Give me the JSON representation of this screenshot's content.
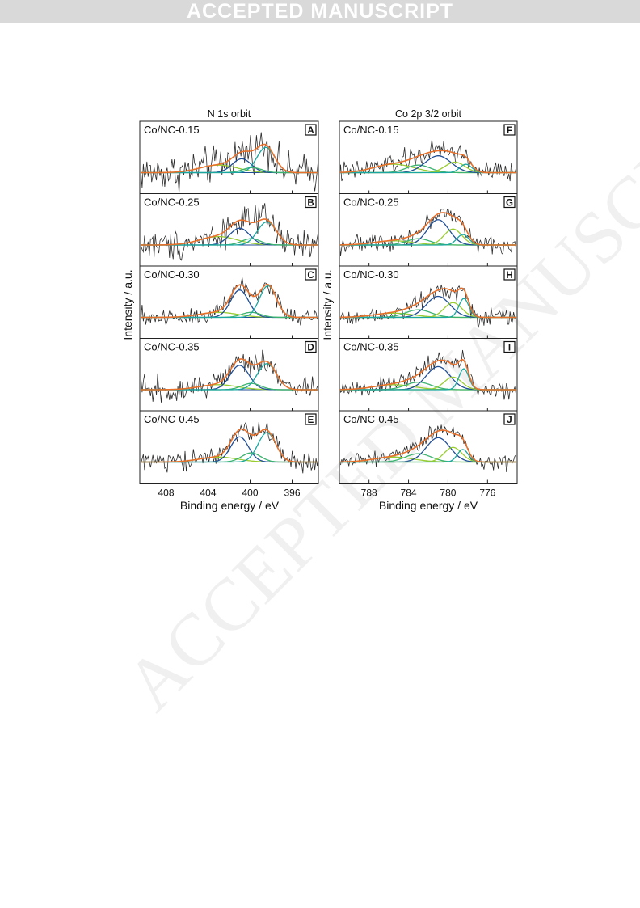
{
  "banner": {
    "text": "ACCEPTED MANUSCRIPT"
  },
  "watermark": {
    "text": "ACCEPTED MANUSCRIPT"
  },
  "colors": {
    "raw": "#2b2b2b",
    "fit": "#e8702a",
    "component_dark_blue": "#1f4e96",
    "component_teal": "#1aa7a1",
    "component_light_green": "#9acd32",
    "component_green": "#3cb371"
  },
  "figure": {
    "shared_ylabel": "Intensity / a.u.",
    "shared_xlabel": "Binding energy / eV"
  },
  "chart_data": [
    {
      "type": "line",
      "column_title": "N 1s orbit",
      "xlabel": "Binding energy / eV",
      "ylabel": "Intensity / a.u.",
      "x_reversed": true,
      "xlim": [
        410.5,
        393.5
      ],
      "x_ticks": [
        408,
        404,
        400,
        396
      ],
      "y_ticks": false,
      "grid": false,
      "panels": [
        {
          "letter": "A",
          "label": "Co/NC-0.15",
          "noise": 0.22,
          "components": [
            {
              "center": 403.0,
              "amp": 0.18,
              "width": 1.8,
              "color": "component_light_green"
            },
            {
              "center": 400.8,
              "amp": 0.33,
              "width": 0.9,
              "color": "component_dark_blue"
            },
            {
              "center": 399.8,
              "amp": 0.12,
              "width": 0.9,
              "color": "component_green"
            },
            {
              "center": 398.5,
              "amp": 0.6,
              "width": 0.85,
              "color": "component_teal"
            }
          ]
        },
        {
          "letter": "B",
          "label": "Co/NC-0.25",
          "noise": 0.18,
          "components": [
            {
              "center": 403.0,
              "amp": 0.2,
              "width": 1.8,
              "color": "component_light_green"
            },
            {
              "center": 401.0,
              "amp": 0.4,
              "width": 0.95,
              "color": "component_dark_blue"
            },
            {
              "center": 399.9,
              "amp": 0.15,
              "width": 0.9,
              "color": "component_green"
            },
            {
              "center": 398.4,
              "amp": 0.55,
              "width": 0.9,
              "color": "component_teal"
            }
          ]
        },
        {
          "letter": "C",
          "label": "Co/NC-0.30",
          "noise": 0.12,
          "components": [
            {
              "center": 403.0,
              "amp": 0.12,
              "width": 1.8,
              "color": "component_light_green"
            },
            {
              "center": 401.0,
              "amp": 0.65,
              "width": 0.85,
              "color": "component_dark_blue"
            },
            {
              "center": 399.9,
              "amp": 0.12,
              "width": 0.9,
              "color": "component_green"
            },
            {
              "center": 398.3,
              "amp": 0.75,
              "width": 0.8,
              "color": "component_teal"
            }
          ]
        },
        {
          "letter": "D",
          "label": "Co/NC-0.35",
          "noise": 0.14,
          "components": [
            {
              "center": 403.0,
              "amp": 0.12,
              "width": 1.8,
              "color": "component_light_green"
            },
            {
              "center": 401.0,
              "amp": 0.58,
              "width": 0.9,
              "color": "component_dark_blue"
            },
            {
              "center": 399.9,
              "amp": 0.15,
              "width": 0.9,
              "color": "component_green"
            },
            {
              "center": 398.4,
              "amp": 0.62,
              "width": 0.9,
              "color": "component_teal"
            }
          ]
        },
        {
          "letter": "E",
          "label": "Co/NC-0.45",
          "noise": 0.12,
          "components": [
            {
              "center": 403.0,
              "amp": 0.12,
              "width": 1.8,
              "color": "component_light_green"
            },
            {
              "center": 401.0,
              "amp": 0.6,
              "width": 0.85,
              "color": "component_dark_blue"
            },
            {
              "center": 399.9,
              "amp": 0.22,
              "width": 0.9,
              "color": "component_green"
            },
            {
              "center": 398.4,
              "amp": 0.7,
              "width": 0.85,
              "color": "component_teal"
            }
          ]
        }
      ]
    },
    {
      "type": "line",
      "column_title": "Co 2p 3/2 orbit",
      "xlabel": "Binding energy / eV",
      "ylabel": "Intensity / a.u.",
      "x_reversed": true,
      "xlim": [
        791.0,
        773.0
      ],
      "x_ticks": [
        788,
        784,
        780,
        776
      ],
      "y_ticks": false,
      "grid": false,
      "panels": [
        {
          "letter": "F",
          "label": "Co/NC-0.15",
          "noise": 0.13,
          "components": [
            {
              "center": 785.5,
              "amp": 0.2,
              "width": 2.0,
              "color": "component_light_green"
            },
            {
              "center": 783.0,
              "amp": 0.18,
              "width": 1.2,
              "color": "component_green"
            },
            {
              "center": 781.0,
              "amp": 0.4,
              "width": 1.3,
              "color": "component_dark_blue"
            },
            {
              "center": 779.3,
              "amp": 0.25,
              "width": 1.0,
              "color": "component_light_green"
            },
            {
              "center": 778.2,
              "amp": 0.2,
              "width": 0.6,
              "color": "component_teal"
            }
          ]
        },
        {
          "letter": "G",
          "label": "Co/NC-0.25",
          "noise": 0.1,
          "components": [
            {
              "center": 785.5,
              "amp": 0.1,
              "width": 2.0,
              "color": "component_light_green"
            },
            {
              "center": 783.0,
              "amp": 0.15,
              "width": 1.2,
              "color": "component_green"
            },
            {
              "center": 781.0,
              "amp": 0.6,
              "width": 1.1,
              "color": "component_dark_blue"
            },
            {
              "center": 779.5,
              "amp": 0.38,
              "width": 0.9,
              "color": "component_light_green"
            },
            {
              "center": 778.5,
              "amp": 0.25,
              "width": 0.6,
              "color": "component_teal"
            }
          ]
        },
        {
          "letter": "H",
          "label": "Co/NC-0.30",
          "noise": 0.1,
          "components": [
            {
              "center": 785.5,
              "amp": 0.1,
              "width": 2.0,
              "color": "component_light_green"
            },
            {
              "center": 783.0,
              "amp": 0.18,
              "width": 1.3,
              "color": "component_green"
            },
            {
              "center": 781.0,
              "amp": 0.5,
              "width": 1.2,
              "color": "component_dark_blue"
            },
            {
              "center": 779.5,
              "amp": 0.35,
              "width": 0.9,
              "color": "component_light_green"
            },
            {
              "center": 778.4,
              "amp": 0.45,
              "width": 0.5,
              "color": "component_teal"
            }
          ]
        },
        {
          "letter": "I",
          "label": "Co/NC-0.35",
          "noise": 0.1,
          "components": [
            {
              "center": 785.5,
              "amp": 0.12,
              "width": 2.0,
              "color": "component_light_green"
            },
            {
              "center": 783.0,
              "amp": 0.18,
              "width": 1.3,
              "color": "component_green"
            },
            {
              "center": 781.0,
              "amp": 0.55,
              "width": 1.2,
              "color": "component_dark_blue"
            },
            {
              "center": 779.5,
              "amp": 0.3,
              "width": 0.9,
              "color": "component_light_green"
            },
            {
              "center": 778.4,
              "amp": 0.5,
              "width": 0.5,
              "color": "component_teal"
            }
          ]
        },
        {
          "letter": "J",
          "label": "Co/NC-0.45",
          "noise": 0.09,
          "components": [
            {
              "center": 785.5,
              "amp": 0.12,
              "width": 2.0,
              "color": "component_light_green"
            },
            {
              "center": 783.0,
              "amp": 0.2,
              "width": 1.3,
              "color": "component_green"
            },
            {
              "center": 781.0,
              "amp": 0.58,
              "width": 1.2,
              "color": "component_dark_blue"
            },
            {
              "center": 779.5,
              "amp": 0.35,
              "width": 0.9,
              "color": "component_light_green"
            },
            {
              "center": 778.5,
              "amp": 0.3,
              "width": 0.55,
              "color": "component_teal"
            }
          ]
        }
      ]
    }
  ]
}
